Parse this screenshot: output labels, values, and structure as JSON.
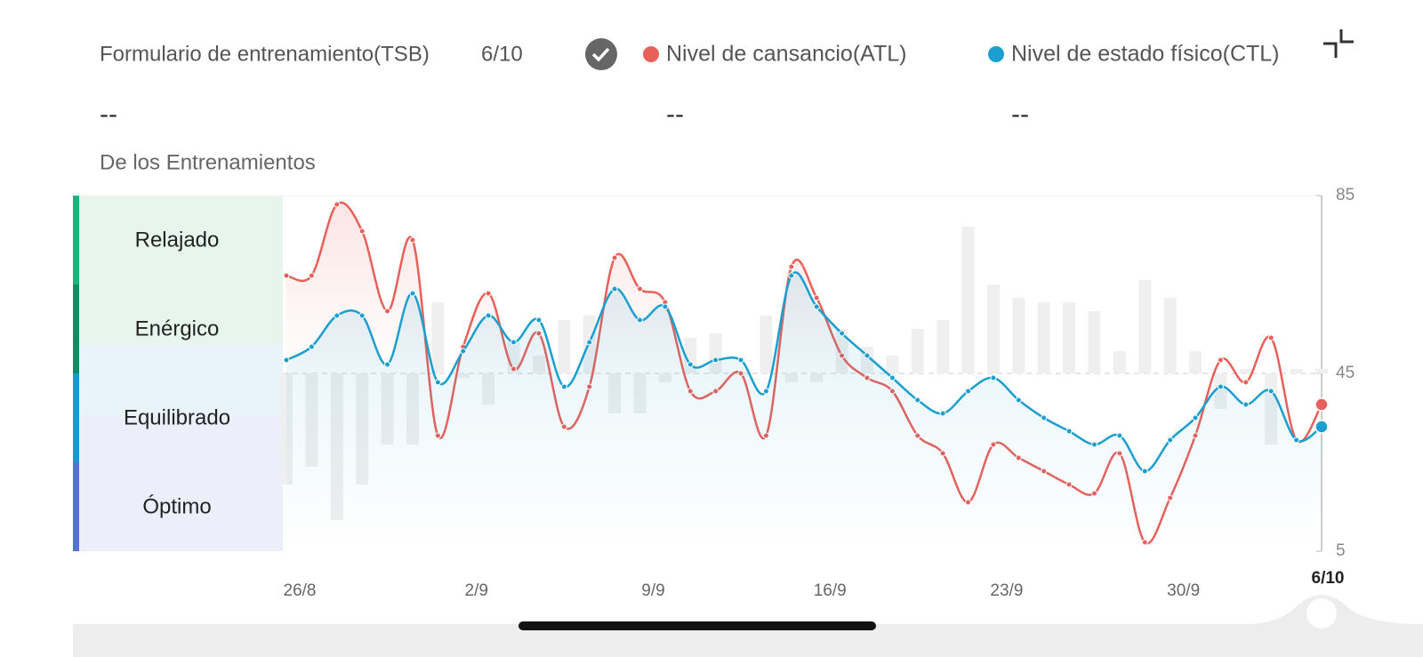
{
  "header": {
    "date": "6/10",
    "values": [
      "--",
      "--",
      "--"
    ]
  },
  "chart_data": {
    "type": "line",
    "subtitle": "De los Entrenamientos",
    "zones": [
      "Relajado",
      "Enérgico",
      "Equilibrado",
      "Óptimo"
    ],
    "categories": [
      "26/8",
      null,
      null,
      null,
      null,
      null,
      null,
      "2/9",
      null,
      null,
      null,
      null,
      null,
      null,
      "9/9",
      null,
      null,
      null,
      null,
      null,
      null,
      "16/9",
      null,
      null,
      null,
      null,
      null,
      null,
      "23/9",
      null,
      null,
      null,
      null,
      null,
      null,
      "30/9",
      null,
      null,
      null,
      null,
      null,
      "6/10"
    ],
    "series": [
      {
        "name": "Formulario de entrenamiento(TSB)",
        "type": "bar",
        "color": "#efefef",
        "values": [
          20,
          24,
          12,
          20,
          29,
          29,
          61,
          44,
          38,
          52,
          49,
          57,
          58,
          36,
          36,
          43,
          53,
          54,
          45,
          58,
          43,
          43,
          55,
          51,
          49,
          55,
          57,
          78,
          65,
          62,
          61,
          61,
          59,
          50,
          66,
          62,
          50,
          37,
          46,
          29,
          46,
          46
        ]
      },
      {
        "name": "Nivel de cansancio(ATL)",
        "color": "#e8605a",
        "values": [
          67,
          67,
          83,
          77,
          59,
          75,
          31,
          51,
          63,
          46,
          54,
          33,
          42,
          71,
          64,
          61,
          41,
          41,
          45,
          31,
          69,
          62,
          49,
          44,
          41,
          31,
          27,
          16,
          29,
          26,
          23,
          20,
          18,
          27,
          7,
          17,
          31,
          48,
          43,
          53,
          30,
          38
        ]
      },
      {
        "name": "Nivel de estado físico(CTL)",
        "color": "#1a9fd0",
        "values": [
          48,
          51,
          58,
          58,
          47,
          63,
          43,
          50,
          58,
          52,
          57,
          42,
          52,
          64,
          57,
          60,
          47,
          48,
          48,
          41,
          67,
          60,
          54,
          49,
          44,
          39,
          36,
          41,
          44,
          39,
          35,
          32,
          29,
          31,
          23,
          30,
          35,
          42,
          38,
          41,
          30,
          33
        ]
      }
    ],
    "bar_baseline": 45,
    "ylim": [
      5,
      85
    ],
    "yticks": [
      5,
      45,
      85
    ]
  }
}
